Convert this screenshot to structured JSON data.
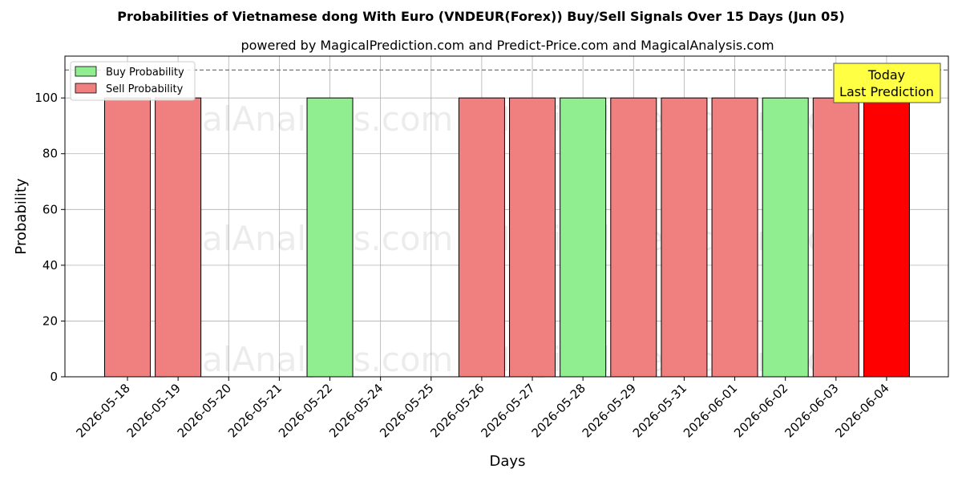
{
  "chart_data": {
    "type": "bar",
    "title": "Probabilities of Vietnamese dong With Euro (VNDEUR(Forex)) Buy/Sell Signals Over 15 Days (Jun 05)",
    "subtitle": "powered by MagicalPrediction.com and Predict-Price.com and MagicalAnalysis.com",
    "xlabel": "Days",
    "ylabel": "Probability",
    "ylim": [
      0,
      115
    ],
    "yticks": [
      0,
      20,
      40,
      60,
      80,
      100
    ],
    "grid": true,
    "legend_position": "top-left",
    "threshold_line": 110,
    "categories": [
      "2026-05-18",
      "2026-05-19",
      "2026-05-20",
      "2026-05-21",
      "2026-05-22",
      "2026-05-24",
      "2026-05-25",
      "2026-05-26",
      "2026-05-27",
      "2026-05-28",
      "2026-05-29",
      "2026-05-31",
      "2026-06-01",
      "2026-06-02",
      "2026-06-03",
      "2026-06-04"
    ],
    "signals": [
      "sell",
      "sell",
      null,
      null,
      "buy",
      null,
      null,
      "sell",
      "sell",
      "buy",
      "sell",
      "sell",
      "sell",
      "buy",
      "sell",
      "sell-today"
    ],
    "values": [
      100,
      100,
      0,
      0,
      100,
      0,
      0,
      100,
      100,
      100,
      100,
      100,
      100,
      100,
      100,
      100
    ],
    "series": [
      {
        "name": "Buy Probability",
        "color": "#90ee90"
      },
      {
        "name": "Sell Probability",
        "color": "#f08080"
      }
    ],
    "today_color": "#ff0000",
    "annotation": {
      "line1": "Today",
      "line2": "Last Prediction",
      "color": "#ffff44"
    },
    "watermarks": [
      "MagicalAnalysis.com",
      "MagicalPrediction.com"
    ]
  }
}
